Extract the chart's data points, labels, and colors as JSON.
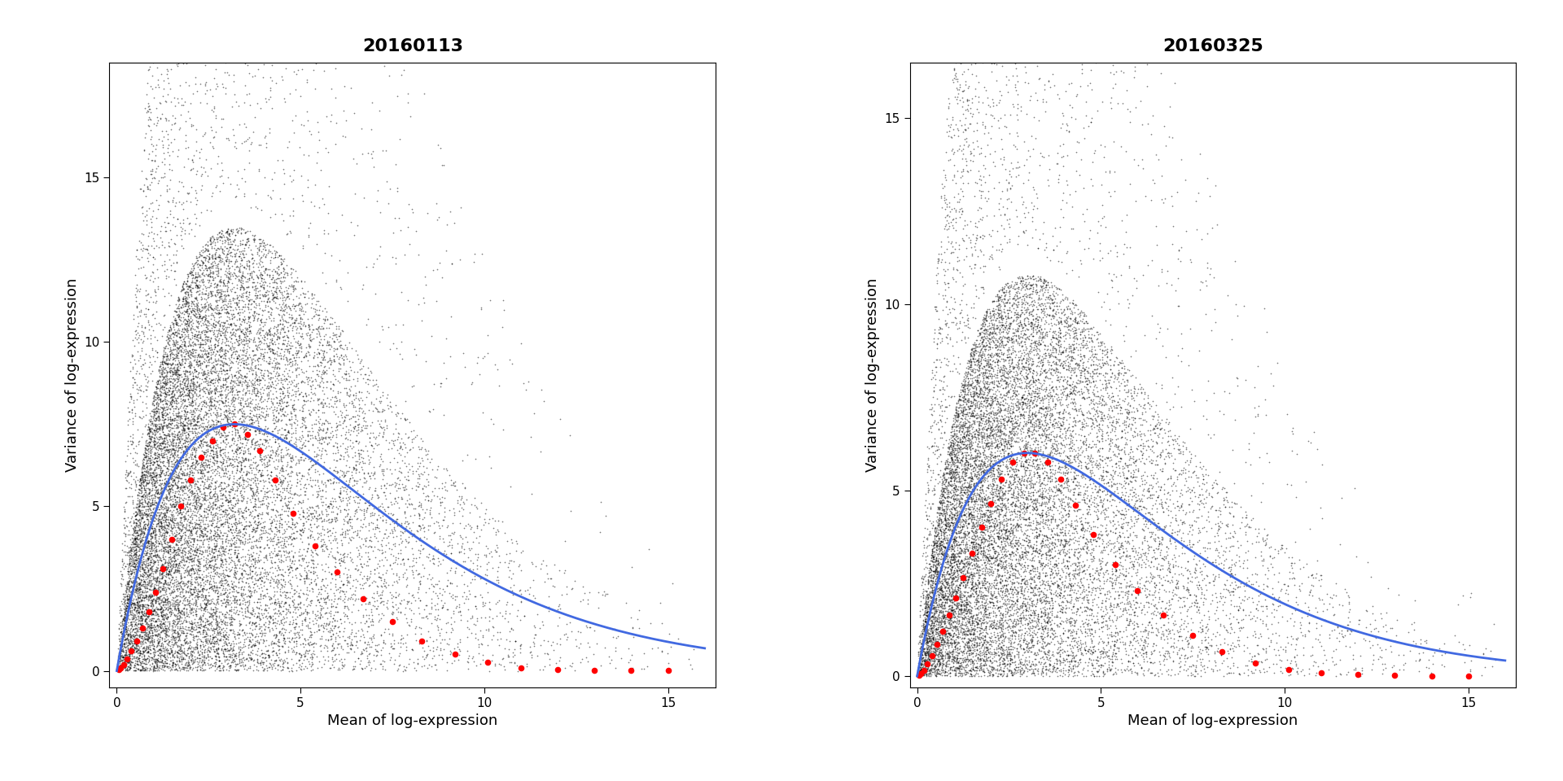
{
  "panels": [
    {
      "title": "20160113",
      "xlim": [
        -0.2,
        16.3
      ],
      "ylim": [
        -0.5,
        18.5
      ],
      "yticks": [
        0,
        5,
        10,
        15
      ],
      "xticks": [
        0,
        5,
        10,
        15
      ],
      "xlabel": "Mean of log-expression",
      "ylabel": "Variance of log-expression",
      "black_seed": 42,
      "black_n": 18000,
      "curve_peak_x": 3.2,
      "curve_peak_y": 7.5,
      "curve_color": "#4169E1",
      "red_points": [
        [
          0.05,
          0.03
        ],
        [
          0.1,
          0.08
        ],
        [
          0.18,
          0.18
        ],
        [
          0.28,
          0.35
        ],
        [
          0.4,
          0.6
        ],
        [
          0.55,
          0.9
        ],
        [
          0.7,
          1.3
        ],
        [
          0.88,
          1.8
        ],
        [
          1.05,
          2.4
        ],
        [
          1.25,
          3.1
        ],
        [
          1.5,
          4.0
        ],
        [
          1.75,
          5.0
        ],
        [
          2.0,
          5.8
        ],
        [
          2.3,
          6.5
        ],
        [
          2.6,
          7.0
        ],
        [
          2.9,
          7.4
        ],
        [
          3.2,
          7.5
        ],
        [
          3.55,
          7.2
        ],
        [
          3.9,
          6.7
        ],
        [
          4.3,
          5.8
        ],
        [
          4.8,
          4.8
        ],
        [
          5.4,
          3.8
        ],
        [
          6.0,
          3.0
        ],
        [
          6.7,
          2.2
        ],
        [
          7.5,
          1.5
        ],
        [
          8.3,
          0.9
        ],
        [
          9.2,
          0.5
        ],
        [
          10.1,
          0.25
        ],
        [
          11.0,
          0.1
        ],
        [
          12.0,
          0.05
        ],
        [
          13.0,
          0.02
        ],
        [
          14.0,
          0.01
        ],
        [
          15.0,
          0.005
        ]
      ]
    },
    {
      "title": "20160325",
      "xlim": [
        -0.2,
        16.3
      ],
      "ylim": [
        -0.3,
        16.5
      ],
      "yticks": [
        0,
        5,
        10,
        15
      ],
      "xticks": [
        0,
        5,
        10,
        15
      ],
      "xlabel": "Mean of log-expression",
      "ylabel": "Variance of log-expression",
      "black_seed": 77,
      "black_n": 17000,
      "curve_peak_x": 3.0,
      "curve_peak_y": 6.0,
      "curve_color": "#4169E1",
      "red_points": [
        [
          0.05,
          0.03
        ],
        [
          0.1,
          0.07
        ],
        [
          0.18,
          0.16
        ],
        [
          0.28,
          0.32
        ],
        [
          0.4,
          0.55
        ],
        [
          0.55,
          0.85
        ],
        [
          0.7,
          1.2
        ],
        [
          0.88,
          1.65
        ],
        [
          1.05,
          2.1
        ],
        [
          1.25,
          2.65
        ],
        [
          1.5,
          3.3
        ],
        [
          1.75,
          4.0
        ],
        [
          2.0,
          4.65
        ],
        [
          2.3,
          5.3
        ],
        [
          2.6,
          5.75
        ],
        [
          2.9,
          6.0
        ],
        [
          3.2,
          6.0
        ],
        [
          3.55,
          5.75
        ],
        [
          3.9,
          5.3
        ],
        [
          4.3,
          4.6
        ],
        [
          4.8,
          3.8
        ],
        [
          5.4,
          3.0
        ],
        [
          6.0,
          2.3
        ],
        [
          6.7,
          1.65
        ],
        [
          7.5,
          1.1
        ],
        [
          8.3,
          0.65
        ],
        [
          9.2,
          0.35
        ],
        [
          10.1,
          0.18
        ],
        [
          11.0,
          0.08
        ],
        [
          12.0,
          0.04
        ],
        [
          13.0,
          0.015
        ],
        [
          14.0,
          0.008
        ],
        [
          15.0,
          0.004
        ]
      ]
    }
  ],
  "fig_bg": "#ffffff",
  "title_fontsize": 16,
  "label_fontsize": 13,
  "tick_fontsize": 11
}
